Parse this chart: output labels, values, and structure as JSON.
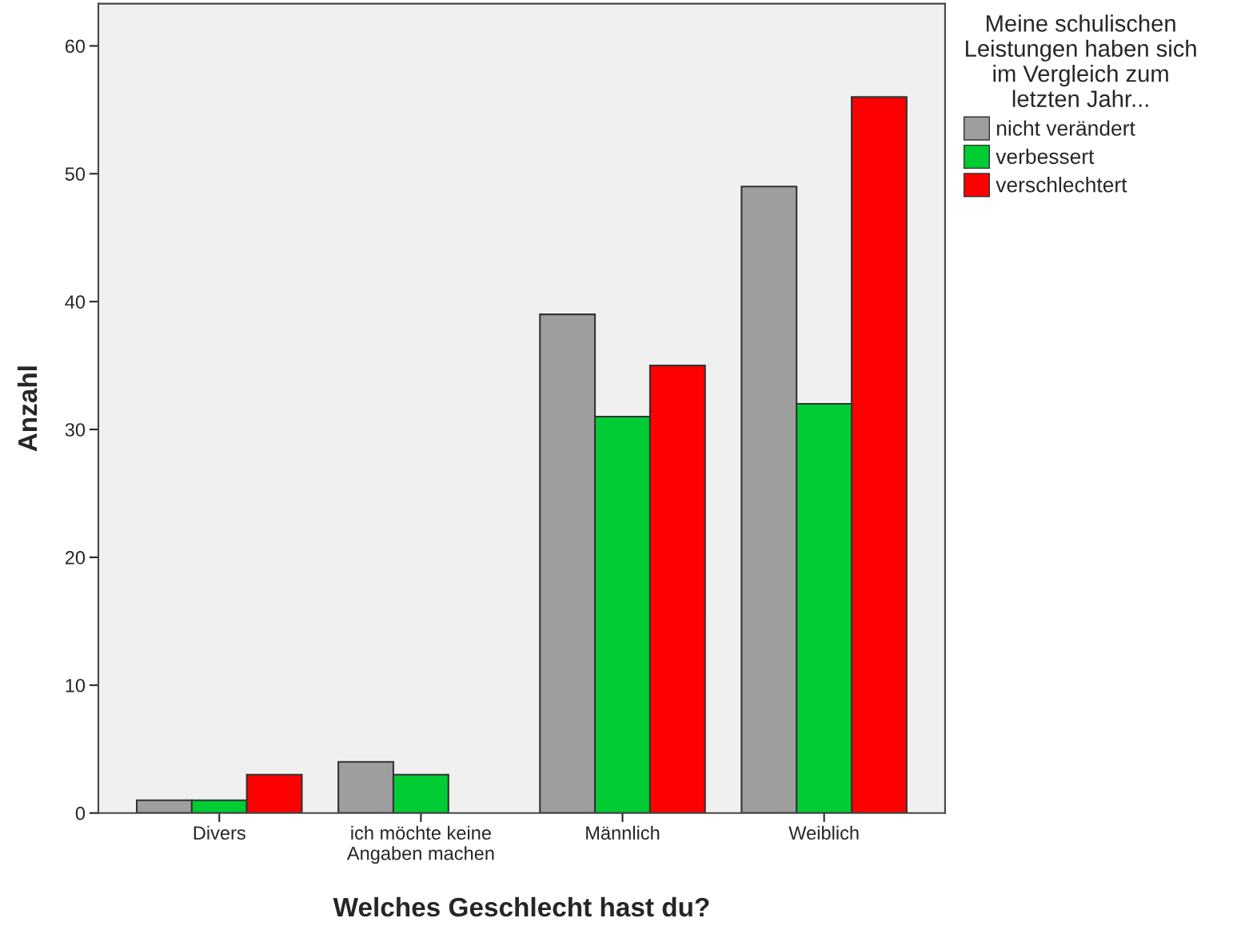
{
  "chart_data": {
    "type": "bar",
    "xlabel": "Welches Geschlecht hast du?",
    "ylabel": "Anzahl",
    "legend_title": "Meine schulischen\nLeistungen haben sich\nim Vergleich zum\nletzten Jahr...",
    "categories": [
      "Divers",
      "ich möchte keine\nAngaben machen",
      "Männlich",
      "Weiblich"
    ],
    "series": [
      {
        "name": "nicht verändert",
        "color": "#9e9e9e",
        "values": [
          1,
          4,
          39,
          49
        ]
      },
      {
        "name": "verbessert",
        "color": "#00cc33",
        "values": [
          1,
          3,
          31,
          32
        ]
      },
      {
        "name": "verschlechtert",
        "color": "#ff0000",
        "values": [
          3,
          null,
          35,
          56
        ]
      }
    ],
    "ylim": [
      0,
      63.3
    ],
    "yticks": [
      0,
      10,
      20,
      30,
      40,
      50,
      60
    ],
    "grid": false,
    "legend": "top right"
  }
}
